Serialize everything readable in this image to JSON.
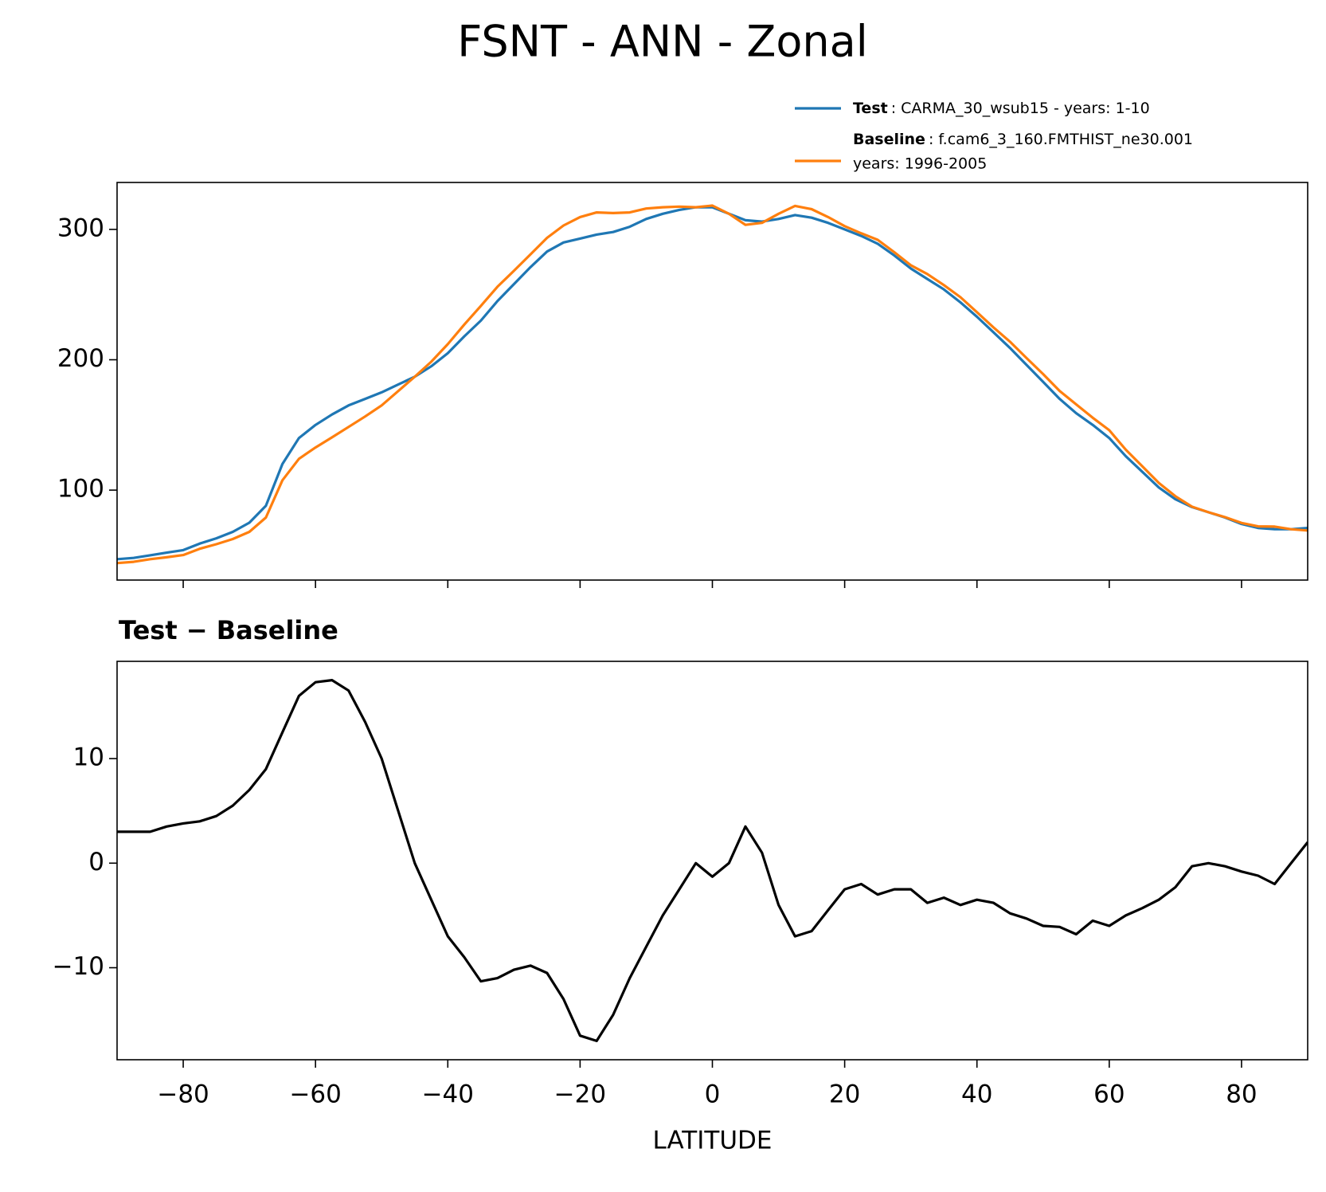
{
  "chart_data": [
    {
      "type": "line",
      "title": "FSNT - ANN - Zonal",
      "x": [
        -90,
        -87.5,
        -85,
        -82.5,
        -80,
        -77.5,
        -75,
        -72.5,
        -70,
        -67.5,
        -65,
        -62.5,
        -60,
        -57.5,
        -55,
        -52.5,
        -50,
        -47.5,
        -45,
        -42.5,
        -40,
        -37.5,
        -35,
        -32.5,
        -30,
        -27.5,
        -25,
        -22.5,
        -20,
        -17.5,
        -15,
        -12.5,
        -10,
        -7.5,
        -5,
        -2.5,
        0,
        2.5,
        5,
        7.5,
        10,
        12.5,
        15,
        17.5,
        20,
        22.5,
        25,
        27.5,
        30,
        32.5,
        35,
        37.5,
        40,
        42.5,
        45,
        47.5,
        50,
        52.5,
        55,
        57.5,
        60,
        62.5,
        65,
        67.5,
        70,
        72.5,
        75,
        77.5,
        80,
        82.5,
        85,
        87.5,
        90
      ],
      "series": [
        {
          "name": "Test",
          "description": [
            ": CARMA_30_wsub15 - years: 1-10"
          ],
          "color": "#1f77b4",
          "values": [
            47,
            48,
            50,
            52,
            54,
            59,
            63,
            68,
            75,
            88,
            120,
            140,
            150,
            158,
            165,
            170,
            175,
            181,
            187,
            195,
            205,
            218,
            230,
            245,
            258,
            271,
            283,
            290,
            293,
            296,
            298,
            302,
            308,
            312,
            315,
            317,
            317,
            312,
            307,
            306,
            308,
            311,
            309,
            305,
            300,
            295,
            289,
            280,
            270,
            262,
            254,
            244,
            233,
            221,
            209,
            196,
            183,
            170,
            159,
            150,
            140,
            126,
            114,
            102,
            93,
            87,
            83,
            79,
            74,
            71,
            70,
            70,
            71
          ]
        },
        {
          "name": "Baseline",
          "description": [
            ": f.cam6_3_160.FMTHIST_ne30.001",
            "years: 1996-2005"
          ],
          "color": "#ff7f0e",
          "values": [
            44,
            45,
            47,
            48.5,
            50.2,
            55,
            58.5,
            62.5,
            68,
            79,
            107.5,
            124,
            132.7,
            140.5,
            148.5,
            156.5,
            165,
            176,
            187,
            198.5,
            212,
            227,
            241.3,
            256,
            268.2,
            280.8,
            293.5,
            303,
            309.5,
            313,
            312.5,
            313,
            316,
            317,
            317.5,
            317,
            318.3,
            312,
            303.5,
            305,
            312,
            318,
            315.5,
            309.5,
            302.5,
            297,
            292,
            282.5,
            272.5,
            265.8,
            257.3,
            248,
            236.5,
            224.8,
            213.8,
            201.3,
            189,
            176.1,
            165.8,
            155.5,
            146,
            131,
            118.3,
            105.5,
            95.3,
            87.3,
            83,
            79.3,
            74.8,
            72.2,
            72,
            70,
            69
          ]
        }
      ],
      "ylim": [
        31,
        336
      ],
      "yticks": [
        100,
        200,
        300
      ]
    },
    {
      "type": "line",
      "subtitle": "Test − Baseline",
      "xlabel": "LATITUDE",
      "color": "#000000",
      "x": [
        -90,
        -87.5,
        -85,
        -82.5,
        -80,
        -77.5,
        -75,
        -72.5,
        -70,
        -67.5,
        -65,
        -62.5,
        -60,
        -57.5,
        -55,
        -52.5,
        -50,
        -47.5,
        -45,
        -42.5,
        -40,
        -37.5,
        -35,
        -32.5,
        -30,
        -27.5,
        -25,
        -22.5,
        -20,
        -17.5,
        -15,
        -12.5,
        -10,
        -7.5,
        -5,
        -2.5,
        0,
        2.5,
        5,
        7.5,
        10,
        12.5,
        15,
        17.5,
        20,
        22.5,
        25,
        27.5,
        30,
        32.5,
        35,
        37.5,
        40,
        42.5,
        45,
        47.5,
        50,
        52.5,
        55,
        57.5,
        60,
        62.5,
        65,
        67.5,
        70,
        72.5,
        75,
        77.5,
        80,
        82.5,
        85,
        87.5,
        90
      ],
      "values": [
        3,
        3,
        3,
        3.5,
        3.8,
        4,
        4.5,
        5.5,
        7,
        9,
        12.5,
        16,
        17.3,
        17.5,
        16.5,
        13.5,
        10,
        5,
        0,
        -3.5,
        -7,
        -9,
        -11.3,
        -11,
        -10.2,
        -9.8,
        -10.5,
        -13,
        -16.5,
        -17,
        -14.5,
        -11,
        -8,
        -5,
        -2.5,
        0,
        -1.3,
        0,
        3.5,
        1,
        -4,
        -7,
        -6.5,
        -4.5,
        -2.5,
        -2,
        -3,
        -2.5,
        -2.5,
        -3.8,
        -3.3,
        -4,
        -3.5,
        -3.8,
        -4.8,
        -5.3,
        -6,
        -6.1,
        -6.8,
        -5.5,
        -6,
        -5,
        -4.3,
        -3.5,
        -2.3,
        -0.3,
        0,
        -0.3,
        -0.8,
        -1.2,
        -2,
        0,
        2
      ],
      "xlim": [
        -90,
        90
      ],
      "xticks": [
        {
          "value": -80,
          "label": "−80"
        },
        {
          "value": -60,
          "label": "−60"
        },
        {
          "value": -40,
          "label": "−40"
        },
        {
          "value": -20,
          "label": "−20"
        },
        0,
        20,
        40,
        60,
        80
      ],
      "ylim": [
        -18.8,
        19.3
      ],
      "yticks": [
        {
          "value": -10,
          "label": "−10"
        },
        0,
        10
      ]
    }
  ]
}
